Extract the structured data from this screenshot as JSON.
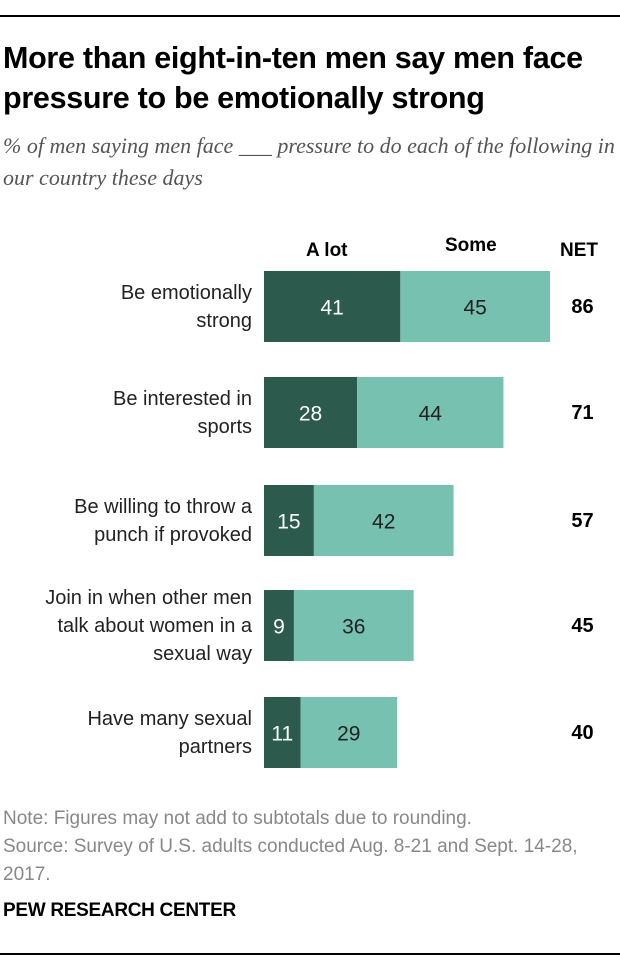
{
  "title": "More than eight-in-ten men say men face pressure to be emotionally strong",
  "subtitle": "% of men saying men face ___ pressure to do each of the following in our country these days",
  "columns": {
    "a_lot": "A lot",
    "some": "Some",
    "net": "NET"
  },
  "colors": {
    "a_lot": "#2c5b4e",
    "some": "#76c1b0",
    "value_text": "#ffffff",
    "value_text_dark": "#222222"
  },
  "chart_data": {
    "type": "bar",
    "orientation": "horizontal",
    "stacked": true,
    "categories": [
      "Be emotionally strong",
      "Be interested in sports",
      "Be willing to throw a punch if provoked",
      "Join in when other men talk about women in a sexual way",
      "Have many sexual partners"
    ],
    "label_lines": [
      [
        "Be emotionally",
        "strong"
      ],
      [
        "Be interested in",
        "sports"
      ],
      [
        "Be willing to throw a",
        "punch if provoked"
      ],
      [
        "Join in when other men",
        "talk about women in a",
        "sexual way"
      ],
      [
        "Have many sexual",
        "partners"
      ]
    ],
    "series": [
      {
        "name": "A lot",
        "values": [
          41,
          28,
          15,
          9,
          11
        ]
      },
      {
        "name": "Some",
        "values": [
          45,
          44,
          42,
          36,
          29
        ]
      }
    ],
    "net": [
      86,
      71,
      57,
      45,
      40
    ],
    "xlim": [
      0,
      100
    ]
  },
  "note": "Note: Figures may not add to subtotals due to rounding.",
  "source": "Source: Survey of U.S. adults conducted Aug. 8-21 and Sept. 14-28, 2017.",
  "brand": "PEW RESEARCH CENTER"
}
